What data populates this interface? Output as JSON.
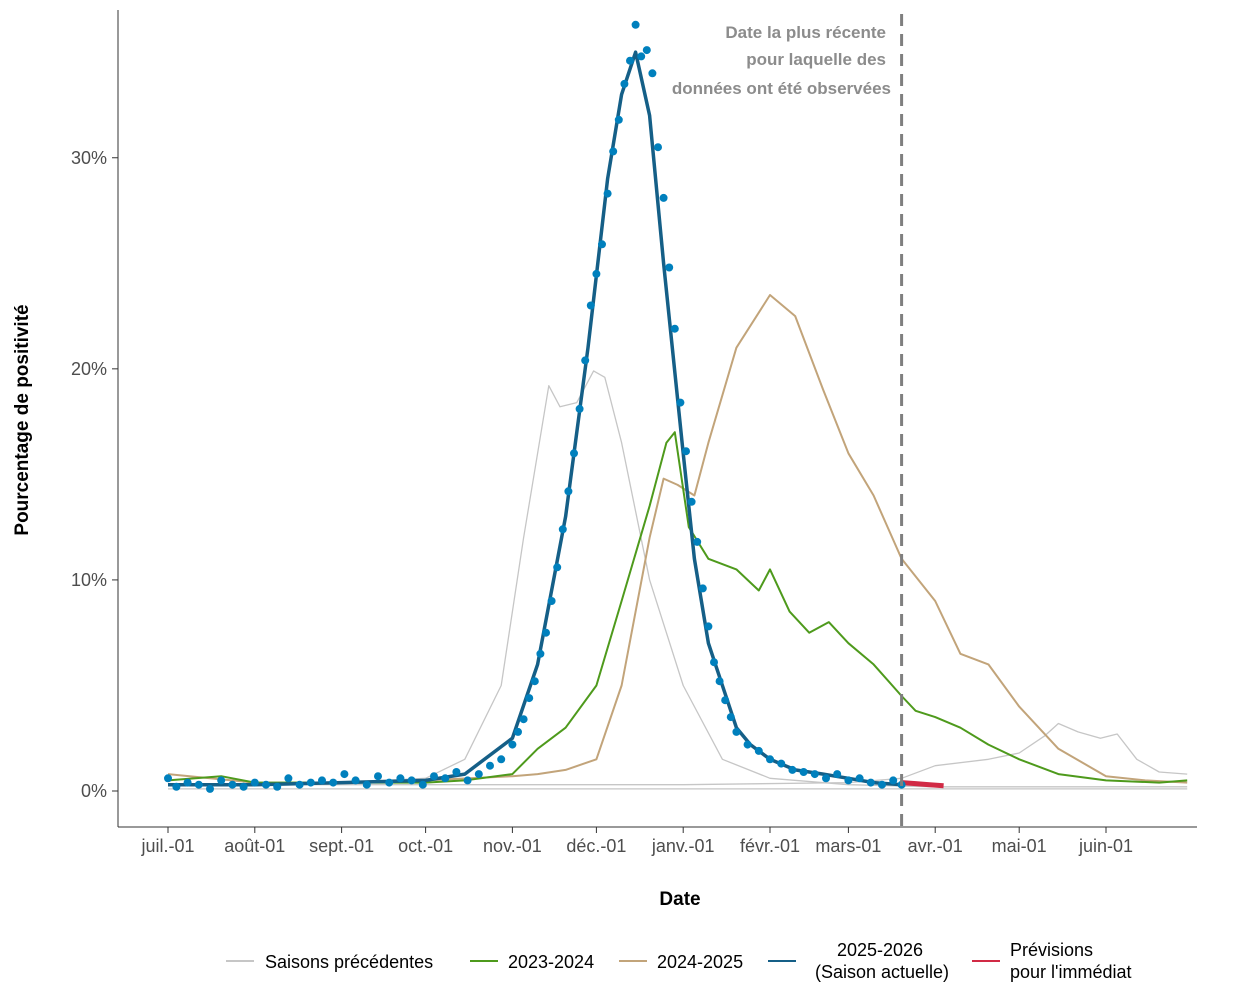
{
  "chart_data": {
    "type": "line",
    "xlabel": "Date",
    "ylabel": "Pourcentage de positivité",
    "x_ticks": [
      "juil.-01",
      "août-01",
      "sept.-01",
      "oct.-01",
      "nov.-01",
      "déc.-01",
      "janv.-01",
      "févr.-01",
      "mars-01",
      "avr.-01",
      "mai-01",
      "juin-01"
    ],
    "y_ticks": [
      "0%",
      "10%",
      "20%",
      "30%"
    ],
    "ylim": [
      0,
      37
    ],
    "xlim": [
      "07-01",
      "06-30"
    ],
    "grid": false,
    "legend_position": "bottom",
    "annotation": {
      "lines": [
        "Date la plus récente",
        "pour laquelle des",
        "données ont été observées"
      ],
      "vline_date": "03-20"
    },
    "colors": {
      "previous": "#c6c6c6",
      "s2023": "#4e9a1c",
      "s2024": "#c2a47a",
      "current": "#155f87",
      "points": "#0080bd",
      "forecast": "#d12a45",
      "vline": "#7f7f7f"
    },
    "legend": [
      {
        "key": "previous",
        "label": "Saisons précédentes"
      },
      {
        "key": "s2023",
        "label": "2023-2024"
      },
      {
        "key": "s2024",
        "label": "2024-2025"
      },
      {
        "key": "current",
        "label": "2025-2026",
        "label2": "(Saison actuelle)"
      },
      {
        "key": "forecast",
        "label": "Prévisions",
        "label2": "pour l'immédiat"
      }
    ],
    "series": [
      {
        "key": "previous_a",
        "legend_key": "previous",
        "x": [
          "07-01",
          "08-01",
          "09-01",
          "10-01",
          "10-15",
          "10-28",
          "11-05",
          "11-10",
          "11-14",
          "11-18",
          "11-24",
          "11-30",
          "12-04",
          "12-10",
          "12-20",
          "01-01",
          "01-15",
          "02-01",
          "03-01",
          "04-01",
          "05-01",
          "06-01",
          "06-30"
        ],
        "y": [
          0.3,
          0.3,
          0.4,
          0.6,
          1.5,
          5,
          12,
          16,
          19.2,
          18.2,
          18.4,
          19.9,
          19.6,
          16.5,
          10,
          5,
          1.5,
          0.6,
          0.3,
          0.2,
          0.2,
          0.2,
          0.2
        ]
      },
      {
        "key": "previous_b",
        "legend_key": "previous",
        "x": [
          "07-01",
          "09-01",
          "11-01",
          "01-01",
          "03-01",
          "03-20",
          "04-01",
          "04-20",
          "05-01",
          "05-10",
          "05-15",
          "05-22",
          "05-30",
          "06-05",
          "06-12",
          "06-20",
          "06-30"
        ],
        "y": [
          0.3,
          0.3,
          0.3,
          0.3,
          0.4,
          0.6,
          1.2,
          1.5,
          1.8,
          2.6,
          3.2,
          2.8,
          2.5,
          2.7,
          1.5,
          0.9,
          0.8
        ]
      },
      {
        "key": "previous_c",
        "legend_key": "previous",
        "x": [
          "07-01",
          "09-01",
          "11-01",
          "12-01",
          "01-01",
          "02-01",
          "03-01",
          "04-01",
          "05-01",
          "06-01",
          "06-30"
        ],
        "y": [
          0.1,
          0.1,
          0.1,
          0.1,
          0.1,
          0.1,
          0.1,
          0.1,
          0.1,
          0.1,
          0.1
        ]
      },
      {
        "key": "s2023",
        "legend_key": "s2023",
        "x": [
          "07-01",
          "07-20",
          "08-01",
          "09-01",
          "10-01",
          "10-15",
          "11-01",
          "11-10",
          "11-20",
          "12-01",
          "12-10",
          "12-20",
          "12-26",
          "12-29",
          "01-03",
          "01-10",
          "01-20",
          "01-28",
          "02-01",
          "02-08",
          "02-15",
          "02-22",
          "03-01",
          "03-10",
          "03-20",
          "03-25",
          "04-01",
          "04-10",
          "04-20",
          "05-01",
          "05-15",
          "06-01",
          "06-20",
          "06-30"
        ],
        "y": [
          0.5,
          0.7,
          0.4,
          0.4,
          0.4,
          0.5,
          0.8,
          2,
          3,
          5,
          9,
          13.5,
          16.5,
          17,
          12.5,
          11,
          10.5,
          9.5,
          10.5,
          8.5,
          7.5,
          8,
          7,
          6,
          4.5,
          3.8,
          3.5,
          3,
          2.2,
          1.5,
          0.8,
          0.5,
          0.4,
          0.5
        ]
      },
      {
        "key": "s2024",
        "legend_key": "s2024",
        "x": [
          "07-01",
          "08-01",
          "09-01",
          "10-01",
          "11-01",
          "11-10",
          "11-20",
          "12-01",
          "12-10",
          "12-20",
          "12-25",
          "12-30",
          "01-05",
          "01-10",
          "01-20",
          "02-01",
          "02-10",
          "02-20",
          "03-01",
          "03-10",
          "03-20",
          "04-01",
          "04-10",
          "04-20",
          "05-01",
          "05-15",
          "06-01",
          "06-15",
          "06-30"
        ],
        "y": [
          0.8,
          0.4,
          0.4,
          0.5,
          0.7,
          0.8,
          1,
          1.5,
          5,
          12,
          14.8,
          14.5,
          14,
          16.5,
          21,
          23.5,
          22.5,
          19,
          16,
          14,
          11,
          9,
          6.5,
          6,
          4,
          2,
          0.7,
          0.5,
          0.4
        ]
      },
      {
        "key": "current",
        "legend_key": "current",
        "x": [
          "07-01",
          "08-01",
          "09-01",
          "10-01",
          "10-15",
          "11-01",
          "11-10",
          "11-20",
          "11-28",
          "12-05",
          "12-10",
          "12-15",
          "12-20",
          "12-25",
          "01-01",
          "01-05",
          "01-10",
          "01-15",
          "01-20",
          "01-25",
          "02-01",
          "02-10",
          "02-20",
          "03-01",
          "03-10",
          "03-20"
        ],
        "y": [
          0.3,
          0.3,
          0.4,
          0.5,
          0.8,
          2.5,
          6,
          13,
          21,
          29,
          33,
          35,
          32,
          25,
          16,
          11,
          7,
          5,
          3,
          2.2,
          1.5,
          1,
          0.8,
          0.6,
          0.4,
          0.3
        ]
      },
      {
        "key": "forecast",
        "legend_key": "forecast",
        "x": [
          "03-20",
          "03-25",
          "03-30",
          "04-04"
        ],
        "y": [
          0.4,
          0.35,
          0.3,
          0.25
        ]
      }
    ],
    "points_series": {
      "key": "current_points",
      "legend_key": "current",
      "x": [
        "07-01",
        "07-04",
        "07-08",
        "07-12",
        "07-16",
        "07-20",
        "07-24",
        "07-28",
        "08-01",
        "08-05",
        "08-09",
        "08-13",
        "08-17",
        "08-21",
        "08-25",
        "08-29",
        "09-02",
        "09-06",
        "09-10",
        "09-14",
        "09-18",
        "09-22",
        "09-26",
        "09-30",
        "10-04",
        "10-08",
        "10-12",
        "10-16",
        "10-20",
        "10-24",
        "10-28",
        "11-01",
        "11-03",
        "11-05",
        "11-07",
        "11-09",
        "11-11",
        "11-13",
        "11-15",
        "11-17",
        "11-19",
        "11-21",
        "11-23",
        "11-25",
        "11-27",
        "11-29",
        "12-01",
        "12-03",
        "12-05",
        "12-07",
        "12-09",
        "12-11",
        "12-13",
        "12-15",
        "12-17",
        "12-19",
        "12-21",
        "12-23",
        "12-25",
        "12-27",
        "12-29",
        "12-31",
        "01-02",
        "01-04",
        "01-06",
        "01-08",
        "01-10",
        "01-12",
        "01-14",
        "01-16",
        "01-18",
        "01-20",
        "01-24",
        "01-28",
        "02-01",
        "02-05",
        "02-09",
        "02-13",
        "02-17",
        "02-21",
        "02-25",
        "03-01",
        "03-05",
        "03-09",
        "03-13",
        "03-17",
        "03-20"
      ],
      "y": [
        0.6,
        0.2,
        0.4,
        0.3,
        0.1,
        0.5,
        0.3,
        0.2,
        0.4,
        0.3,
        0.2,
        0.6,
        0.3,
        0.4,
        0.5,
        0.4,
        0.8,
        0.5,
        0.3,
        0.7,
        0.4,
        0.6,
        0.5,
        0.3,
        0.7,
        0.6,
        0.9,
        0.5,
        0.8,
        1.2,
        1.5,
        2.2,
        2.8,
        3.4,
        4.4,
        5.2,
        6.5,
        7.5,
        9,
        10.6,
        12.4,
        14.2,
        16,
        18.1,
        20.4,
        23,
        24.5,
        25.9,
        28.3,
        30.3,
        31.8,
        33.5,
        34.6,
        36.3,
        34.8,
        35.1,
        34,
        30.5,
        28.1,
        24.8,
        21.9,
        18.4,
        16.1,
        13.7,
        11.8,
        9.6,
        7.8,
        6.1,
        5.2,
        4.3,
        3.5,
        2.8,
        2.2,
        1.9,
        1.5,
        1.3,
        1.0,
        0.9,
        0.8,
        0.6,
        0.8,
        0.5,
        0.6,
        0.4,
        0.3,
        0.5,
        0.3
      ]
    }
  }
}
